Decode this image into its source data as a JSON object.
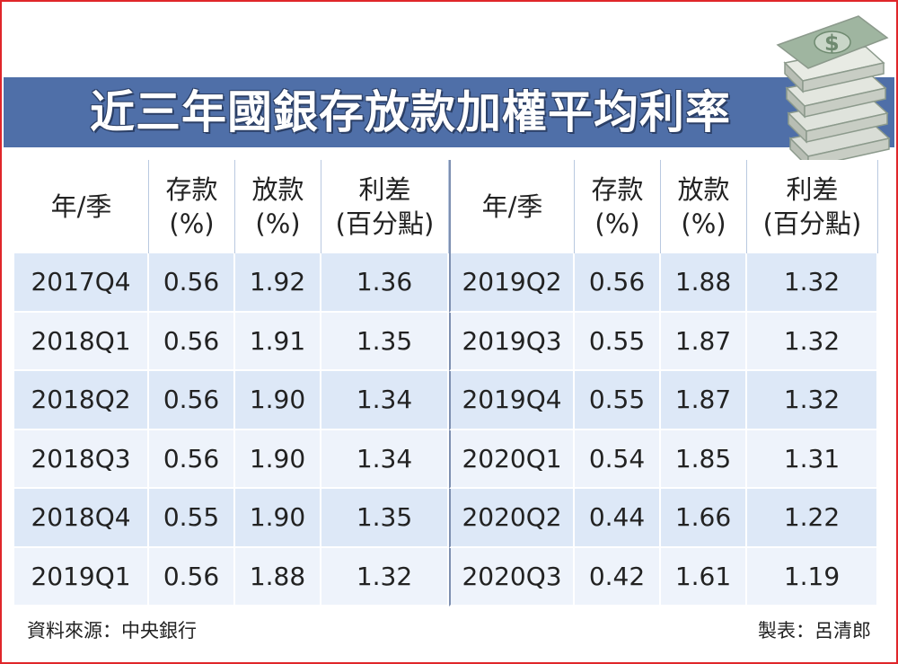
{
  "title": "近三年國銀存放款加權平均利率",
  "colors": {
    "title_bar": "#4f6fa8",
    "border": "#e0262a",
    "row_a": "#dde8f7",
    "row_b": "#eef3fb"
  },
  "chart_data": {
    "type": "table",
    "title": "近三年國銀存放款加權平均利率",
    "columns": [
      "年/季",
      "存款 (%)",
      "放款 (%)",
      "利差 (百分點)"
    ],
    "headers": {
      "period": "年/季",
      "deposit_l1": "存款",
      "deposit_l2": "(%)",
      "loan_l1": "放款",
      "loan_l2": "(%)",
      "spread_l1": "利差",
      "spread_l2": "(百分點)"
    },
    "rows": [
      {
        "period": "2017Q4",
        "deposit": "0.56",
        "loan": "1.92",
        "spread": "1.36"
      },
      {
        "period": "2018Q1",
        "deposit": "0.56",
        "loan": "1.91",
        "spread": "1.35"
      },
      {
        "period": "2018Q2",
        "deposit": "0.56",
        "loan": "1.90",
        "spread": "1.34"
      },
      {
        "period": "2018Q3",
        "deposit": "0.56",
        "loan": "1.90",
        "spread": "1.34"
      },
      {
        "period": "2018Q4",
        "deposit": "0.55",
        "loan": "1.90",
        "spread": "1.35"
      },
      {
        "period": "2019Q1",
        "deposit": "0.56",
        "loan": "1.88",
        "spread": "1.32"
      },
      {
        "period": "2019Q2",
        "deposit": "0.56",
        "loan": "1.88",
        "spread": "1.32"
      },
      {
        "period": "2019Q3",
        "deposit": "0.55",
        "loan": "1.87",
        "spread": "1.32"
      },
      {
        "period": "2019Q4",
        "deposit": "0.55",
        "loan": "1.87",
        "spread": "1.32"
      },
      {
        "period": "2020Q1",
        "deposit": "0.54",
        "loan": "1.85",
        "spread": "1.31"
      },
      {
        "period": "2020Q2",
        "deposit": "0.44",
        "loan": "1.66",
        "spread": "1.22"
      },
      {
        "period": "2020Q3",
        "deposit": "0.42",
        "loan": "1.61",
        "spread": "1.19"
      }
    ]
  },
  "footer": {
    "source": "資料來源：中央銀行",
    "author": "製表：呂清郎"
  },
  "icons": {
    "illustration": "money-stack-icon"
  }
}
